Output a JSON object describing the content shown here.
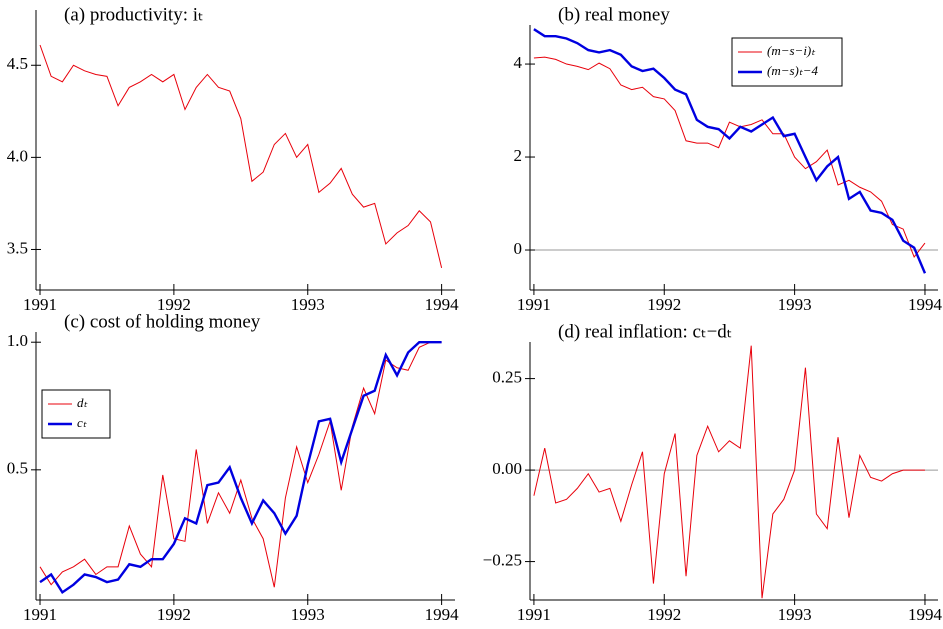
{
  "chart_data": [
    {
      "type": "line",
      "title": "(a) productivity: iₜ",
      "x": [
        1991,
        1991.083,
        1991.167,
        1991.25,
        1991.333,
        1991.417,
        1991.5,
        1991.583,
        1991.667,
        1991.75,
        1991.833,
        1991.917,
        1992,
        1992.083,
        1992.167,
        1992.25,
        1992.333,
        1992.417,
        1992.5,
        1992.583,
        1992.667,
        1992.75,
        1992.833,
        1992.917,
        1993,
        1993.083,
        1993.167,
        1993.25,
        1993.333,
        1993.417,
        1993.5,
        1993.583,
        1993.667,
        1993.75,
        1993.833,
        1993.917,
        1994
      ],
      "series": [
        {
          "color": "#e8000b",
          "values": [
            4.61,
            4.44,
            4.41,
            4.5,
            4.47,
            4.45,
            4.44,
            4.28,
            4.38,
            4.41,
            4.45,
            4.41,
            4.45,
            4.26,
            4.38,
            4.45,
            4.38,
            4.36,
            4.21,
            3.87,
            3.92,
            4.07,
            4.13,
            4.0,
            4.07,
            3.81,
            3.86,
            3.94,
            3.8,
            3.73,
            3.75,
            3.53,
            3.59,
            3.63,
            3.71,
            3.65,
            3.4
          ]
        }
      ],
      "xlim": [
        1990.97,
        1994.1
      ],
      "xticks": [
        1991,
        1992,
        1993,
        1994
      ],
      "ylim": [
        3.28,
        4.8
      ],
      "yticks": [
        3.5,
        {
          "value": 4.0,
          "label": "4.0"
        },
        4.5
      ],
      "zero_line": false
    },
    {
      "type": "line",
      "title": "(b) real money",
      "x": [
        1991,
        1991.083,
        1991.167,
        1991.25,
        1991.333,
        1991.417,
        1991.5,
        1991.583,
        1991.667,
        1991.75,
        1991.833,
        1991.917,
        1992,
        1992.083,
        1992.167,
        1992.25,
        1992.333,
        1992.417,
        1992.5,
        1992.583,
        1992.667,
        1992.75,
        1992.833,
        1992.917,
        1993,
        1993.083,
        1993.167,
        1993.25,
        1993.333,
        1993.417,
        1993.5,
        1993.583,
        1993.667,
        1993.75,
        1993.833,
        1993.917,
        1994
      ],
      "series": [
        {
          "name": "(m−s−i)ₜ",
          "color": "#e8000b",
          "values": [
            4.13,
            4.15,
            4.1,
            4.0,
            3.95,
            3.88,
            4.02,
            3.9,
            3.55,
            3.45,
            3.5,
            3.3,
            3.25,
            3.0,
            2.35,
            2.3,
            2.3,
            2.2,
            2.75,
            2.65,
            2.7,
            2.8,
            2.5,
            2.5,
            2.0,
            1.75,
            1.9,
            2.15,
            1.4,
            1.5,
            1.35,
            1.25,
            1.05,
            0.55,
            0.45,
            -0.15,
            0.15
          ]
        },
        {
          "name": "(m−s)ₜ−4",
          "color": "#0000e0",
          "values": [
            4.75,
            4.6,
            4.6,
            4.55,
            4.45,
            4.3,
            4.25,
            4.3,
            4.2,
            3.95,
            3.85,
            3.9,
            3.7,
            3.45,
            3.35,
            2.8,
            2.65,
            2.6,
            2.4,
            2.65,
            2.55,
            2.7,
            2.85,
            2.45,
            2.5,
            2.0,
            1.5,
            1.8,
            2.0,
            1.1,
            1.25,
            0.85,
            0.8,
            0.65,
            0.2,
            0.05,
            -0.5
          ]
        }
      ],
      "xlim": [
        1990.97,
        1994.1
      ],
      "xticks": [
        1991,
        1992,
        1993,
        1994
      ],
      "ylim": [
        -0.86,
        4.84
      ],
      "yticks": [
        0,
        2,
        4
      ],
      "zero_line": true,
      "legend": "upper right"
    },
    {
      "type": "line",
      "title": "(c) cost of holding money",
      "x": [
        1991,
        1991.083,
        1991.167,
        1991.25,
        1991.333,
        1991.417,
        1991.5,
        1991.583,
        1991.667,
        1991.75,
        1991.833,
        1991.917,
        1992,
        1992.083,
        1992.167,
        1992.25,
        1992.333,
        1992.417,
        1992.5,
        1992.583,
        1992.667,
        1992.75,
        1992.833,
        1992.917,
        1993,
        1993.083,
        1993.167,
        1993.25,
        1993.333,
        1993.417,
        1993.5,
        1993.583,
        1993.667,
        1993.75,
        1993.833,
        1993.917,
        1994
      ],
      "series": [
        {
          "name": "dₜ",
          "color": "#e8000b",
          "values": [
            0.12,
            0.05,
            0.1,
            0.12,
            0.15,
            0.09,
            0.12,
            0.12,
            0.28,
            0.17,
            0.12,
            0.48,
            0.23,
            0.22,
            0.58,
            0.29,
            0.41,
            0.33,
            0.46,
            0.31,
            0.23,
            0.04,
            0.39,
            0.59,
            0.45,
            0.56,
            0.69,
            0.42,
            0.67,
            0.82,
            0.72,
            0.93,
            0.9,
            0.89,
            0.98,
            1.0,
            1.0
          ]
        },
        {
          "name": "cₜ",
          "color": "#0000e0",
          "values": [
            0.06,
            0.09,
            0.02,
            0.05,
            0.09,
            0.08,
            0.06,
            0.07,
            0.13,
            0.12,
            0.15,
            0.15,
            0.21,
            0.31,
            0.29,
            0.44,
            0.45,
            0.51,
            0.39,
            0.29,
            0.38,
            0.33,
            0.25,
            0.32,
            0.52,
            0.69,
            0.7,
            0.53,
            0.66,
            0.79,
            0.81,
            0.95,
            0.87,
            0.96,
            1.0,
            1.0,
            1.0
          ]
        }
      ],
      "xlim": [
        1990.97,
        1994.1
      ],
      "xticks": [
        1991,
        1992,
        1993,
        1994
      ],
      "ylim": [
        -0.01,
        1.04
      ],
      "yticks": [
        0.5,
        {
          "value": 1.0,
          "label": "1.0"
        }
      ],
      "zero_line": false,
      "legend": "upper left"
    },
    {
      "type": "line",
      "title": "(d) real inflation: cₜ−dₜ",
      "x": [
        1991,
        1991.083,
        1991.167,
        1991.25,
        1991.333,
        1991.417,
        1991.5,
        1991.583,
        1991.667,
        1991.75,
        1991.833,
        1991.917,
        1992,
        1992.083,
        1992.167,
        1992.25,
        1992.333,
        1992.417,
        1992.5,
        1992.583,
        1992.667,
        1992.75,
        1992.833,
        1992.917,
        1993,
        1993.083,
        1993.167,
        1993.25,
        1993.333,
        1993.417,
        1993.5,
        1993.583,
        1993.667,
        1993.75,
        1993.833,
        1993.917,
        1994
      ],
      "series": [
        {
          "color": "#e8000b",
          "values": [
            -0.07,
            0.06,
            -0.09,
            -0.08,
            -0.05,
            -0.01,
            -0.06,
            -0.05,
            -0.14,
            -0.04,
            0.05,
            -0.31,
            -0.01,
            0.1,
            -0.29,
            0.04,
            0.12,
            0.05,
            0.08,
            0.06,
            0.34,
            -0.35,
            -0.12,
            -0.08,
            0.0,
            0.28,
            -0.12,
            -0.16,
            0.09,
            -0.13,
            0.04,
            -0.02,
            -0.03,
            -0.01,
            0.0,
            0.0,
            0.0
          ]
        }
      ],
      "xlim": [
        1990.97,
        1994.1
      ],
      "xticks": [
        1991,
        1992,
        1993,
        1994
      ],
      "ylim": [
        -0.355,
        0.35
      ],
      "yticks": [
        {
          "value": -0.25,
          "label": "−0.25"
        },
        {
          "value": 0,
          "label": "0.00"
        },
        {
          "value": 0.25,
          "label": "0.25"
        }
      ],
      "zero_line": true
    }
  ]
}
